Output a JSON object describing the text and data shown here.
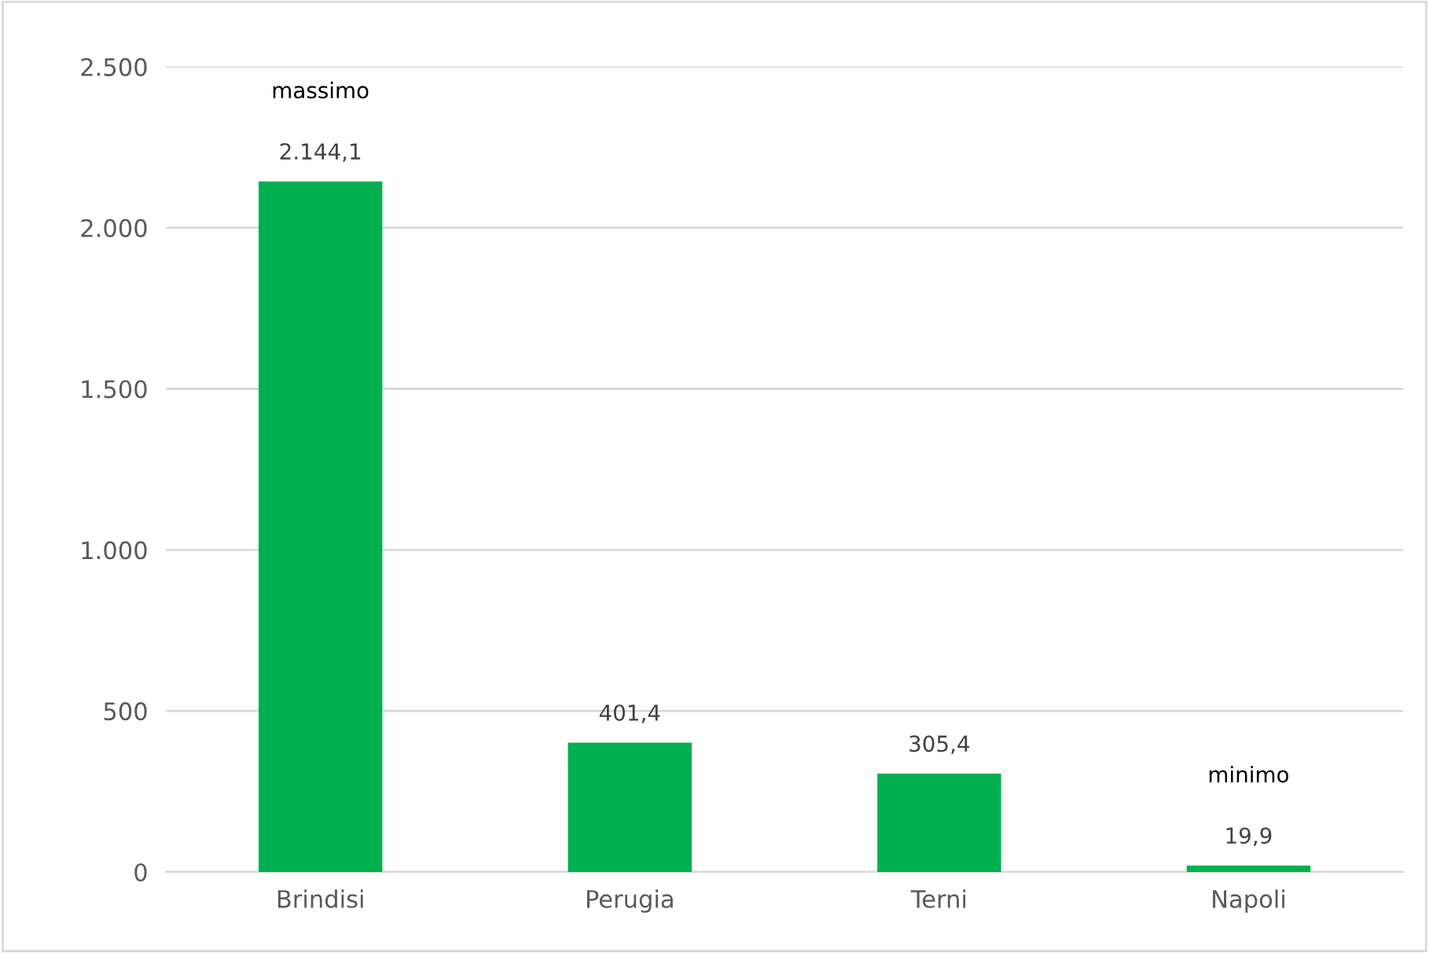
{
  "chart_data": {
    "type": "bar",
    "categories": [
      "Brindisi",
      "Perugia",
      "Terni",
      "Napoli"
    ],
    "values": [
      2144.1,
      401.4,
      305.4,
      19.9
    ],
    "value_labels": [
      "2.144,1",
      "401,4",
      "305,4",
      "19,9"
    ],
    "color": "#00b050",
    "ylim": [
      0,
      2500
    ],
    "yticks": [
      0,
      500,
      {
        "value": 1000,
        "label": "1.000"
      },
      {
        "value": 1500,
        "label": "1.500"
      },
      {
        "value": 2000,
        "label": "2.000"
      },
      {
        "value": 2500,
        "label": "2.500"
      }
    ],
    "grid": "y",
    "annotations": [
      "massimo",
      "minimo"
    ]
  }
}
